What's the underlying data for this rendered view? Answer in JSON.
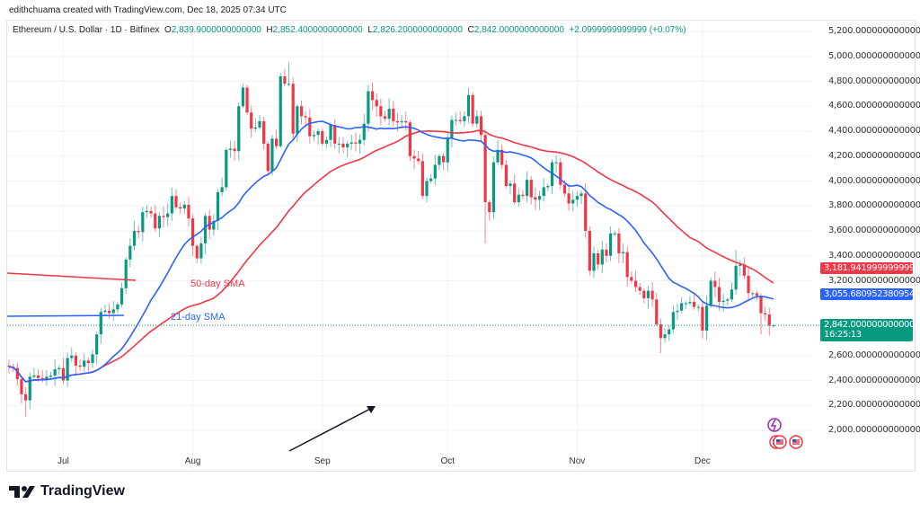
{
  "credit": "edithchuama created with TradingView.com, Dec 18, 2025 07:34 UTC",
  "legend": {
    "symbol": "Ethereum / U.S. Dollar · 1D · Bitfinex",
    "o_label": "O",
    "open": "2,839.9000000000000",
    "h_label": "H",
    "high": "2,852.4000000000000",
    "l_label": "L",
    "low": "2,826.2000000000000",
    "c_label": "C",
    "close": "2,842.0000000000000",
    "change": "+2.0999999999999 (+0.07%)"
  },
  "price_tags": {
    "sma50": "3,181.9419999999992",
    "sma21": "3,055.6809523809548",
    "last": "2,842.0000000000000",
    "countdown": "16:25:13"
  },
  "sma_labels": {
    "sma50": "50-day SMA",
    "sma21": "21-day SMA"
  },
  "logo": "TradingView",
  "colors": {
    "up": "#089981",
    "down": "#f23645",
    "sma21": "#2962ff",
    "sma50": "#f23645",
    "grid": "#f0f3fa"
  },
  "chart_data": {
    "type": "candlestick",
    "title": "Ethereum / U.S. Dollar · 1D · Bitfinex",
    "x_range": [
      "2025-06-18",
      "2025-12-18"
    ],
    "x_ticks": [
      "Jul",
      "Aug",
      "Sep",
      "Oct",
      "Nov",
      "Dec"
    ],
    "y_ticks": [
      "5,200.0000000000000",
      "5,000.0000000000000",
      "4,800.0000000000000",
      "4,600.0000000000000",
      "4,400.0000000000000",
      "4,200.0000000000000",
      "4,000.0000000000000",
      "3,800.0000000000000",
      "3,600.0000000000000",
      "3,400.0000000000000",
      "3,200.0000000000000",
      "2,600.0000000000000",
      "2,400.0000000000000",
      "2,200.0000000000000",
      "2,000.0000000000000"
    ],
    "ylim": [
      1800,
      5300
    ],
    "grid": true,
    "close": [
      2510,
      2500,
      2410,
      2290,
      2240,
      2430,
      2440,
      2420,
      2410,
      2430,
      2440,
      2490,
      2500,
      2400,
      2580,
      2600,
      2520,
      2510,
      2560,
      2540,
      2610,
      2770,
      2950,
      2960,
      2940,
      2970,
      3010,
      3140,
      3370,
      3480,
      3600,
      3590,
      3750,
      3760,
      3740,
      3620,
      3720,
      3710,
      3740,
      3880,
      3790,
      3780,
      3810,
      3700,
      3480,
      3380,
      3500,
      3720,
      3610,
      3680,
      3910,
      3950,
      4250,
      4260,
      4240,
      4600,
      4750,
      4550,
      4420,
      4430,
      4480,
      4300,
      4080,
      4340,
      4280,
      4840,
      4780,
      4780,
      4380,
      4600,
      4520,
      4510,
      4360,
      4370,
      4400,
      4300,
      4330,
      4450,
      4300,
      4300,
      4270,
      4300,
      4310,
      4300,
      4330,
      4460,
      4720,
      4650,
      4600,
      4520,
      4500,
      4580,
      4480,
      4470,
      4480,
      4470,
      4200,
      4180,
      4160,
      3880,
      4000,
      4020,
      4130,
      4200,
      4150,
      4350,
      4490,
      4490,
      4480,
      4520,
      4690,
      4460,
      4520,
      4370,
      3830,
      3750,
      4150,
      4250,
      4130,
      3960,
      3980,
      3830,
      3890,
      3880,
      4010,
      3870,
      3850,
      3880,
      3950,
      3960,
      4150,
      4150,
      3970,
      3900,
      3820,
      3850,
      3880,
      3900,
      3600,
      3280,
      3420,
      3330,
      3450,
      3400,
      3580,
      3580,
      3420,
      3430,
      3230,
      3200,
      3150,
      3120,
      3060,
      3120,
      3050,
      2850,
      2740,
      2770,
      2810,
      2950,
      2960,
      3020,
      3020,
      3030,
      2990,
      2990,
      2800,
      3000,
      3200,
      3150,
      3030,
      3040,
      3050,
      3130,
      3320,
      3330,
      3240,
      3100,
      3100,
      3080,
      2940,
      2930,
      2840,
      2842
    ],
    "notable_extremes": [
      {
        "date": "2025-06-22",
        "low": 2110
      },
      {
        "date": "2025-08-24",
        "high": 4950
      },
      {
        "date": "2025-10-06",
        "high": 4750
      },
      {
        "date": "2025-10-10",
        "low": 3500
      },
      {
        "date": "2025-11-21",
        "low": 2620
      },
      {
        "date": "2025-12-09",
        "high": 3450
      },
      {
        "date": "2025-12-15",
        "low": 2770
      }
    ],
    "series": [
      {
        "name": "21-day SMA"
      },
      {
        "name": "50-day SMA"
      }
    ]
  }
}
